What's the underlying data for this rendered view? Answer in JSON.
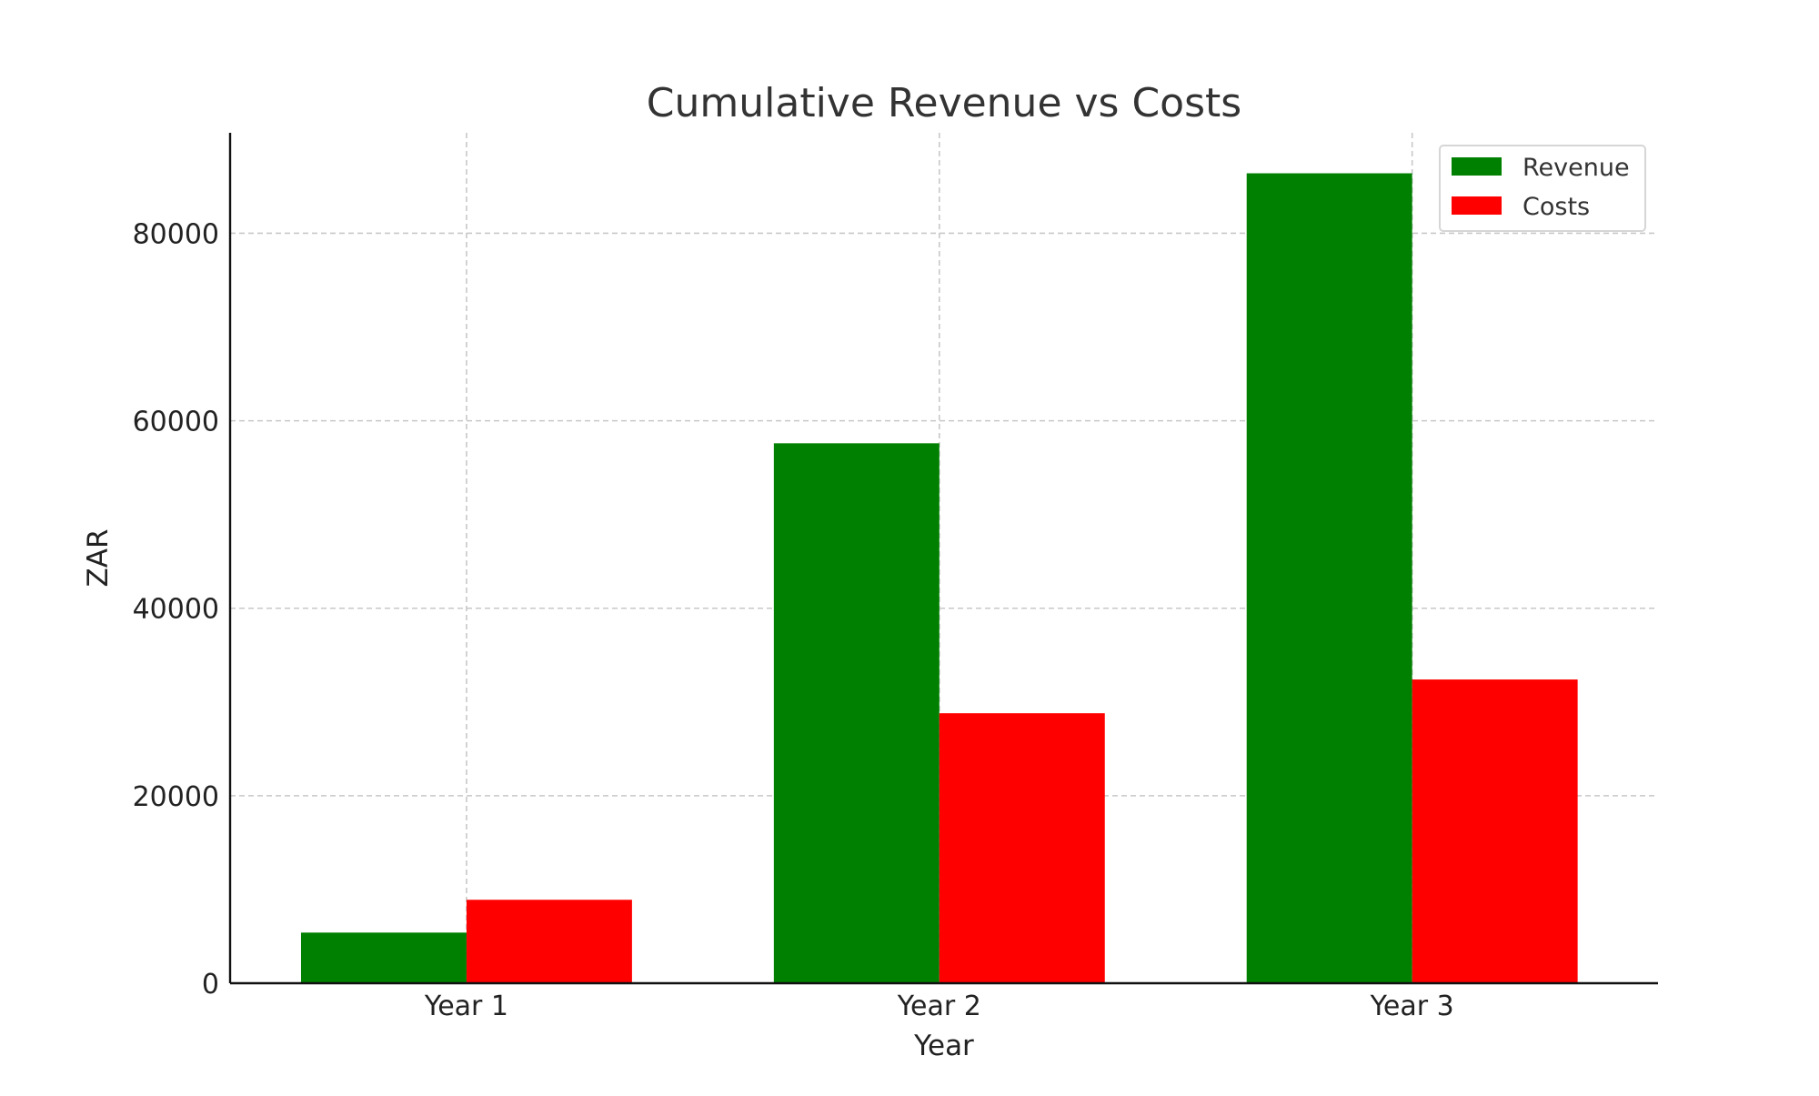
{
  "chart_data": {
    "type": "bar",
    "title": "Cumulative Revenue vs Costs",
    "xlabel": "Year",
    "ylabel": "ZAR",
    "categories": [
      "Year 1",
      "Year 2",
      "Year 3"
    ],
    "series": [
      {
        "name": "Revenue",
        "color": "#008000",
        "values": [
          5400,
          57600,
          86400
        ]
      },
      {
        "name": "Costs",
        "color": "#ff0000",
        "values": [
          8900,
          28800,
          32400
        ]
      }
    ],
    "ylim": [
      0,
      90720
    ],
    "yticks": [
      0,
      20000,
      40000,
      60000,
      80000
    ],
    "ytick_labels": [
      "0",
      "20000",
      "40000",
      "60000",
      "80000"
    ],
    "grid": true,
    "legend_position": "top-right"
  }
}
